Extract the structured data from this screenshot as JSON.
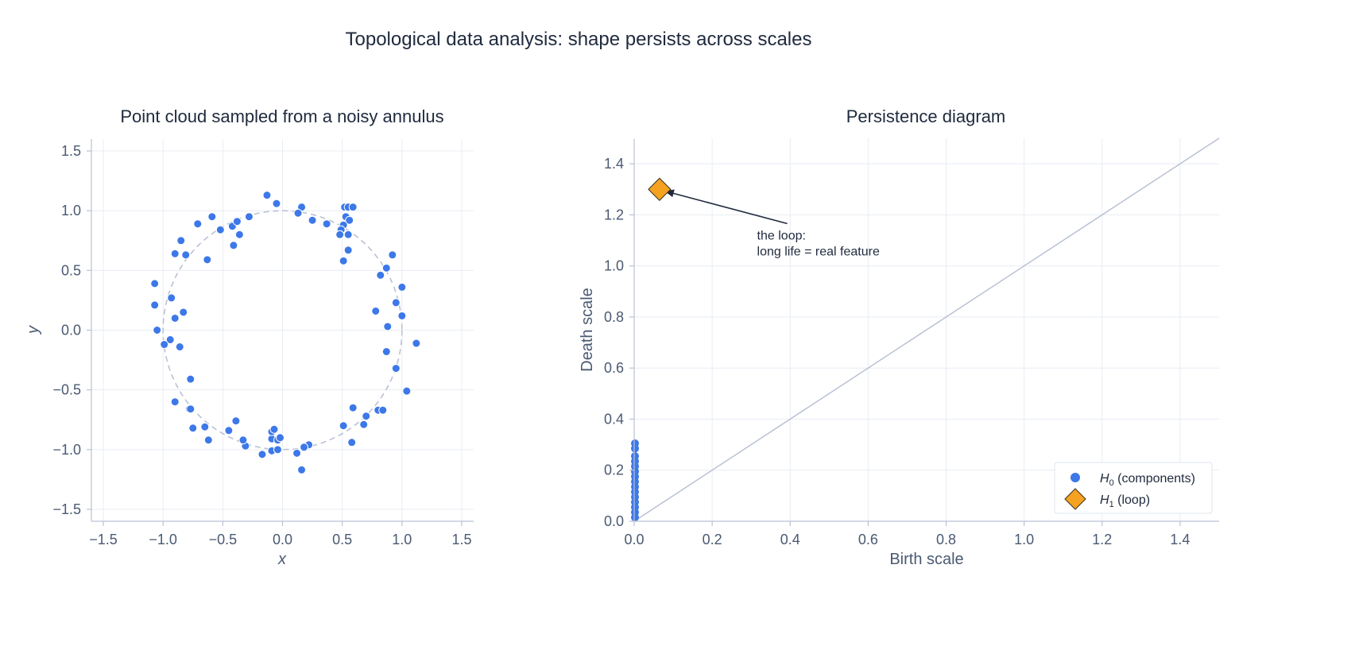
{
  "figure_title": "Topological data analysis: shape persists across scales",
  "chart_data": [
    {
      "type": "scatter",
      "title": "Point cloud sampled from a noisy annulus",
      "xlabel": "x",
      "ylabel": "y",
      "xlim": [
        -1.6,
        1.6
      ],
      "ylim": [
        -1.6,
        1.6
      ],
      "xticks": [
        "−1.5",
        "−1.0",
        "−0.5",
        "0.0",
        "0.5",
        "1.0",
        "1.5"
      ],
      "yticks": [
        "−1.5",
        "−1.0",
        "−0.5",
        "0.0",
        "0.5",
        "1.0",
        "1.5"
      ],
      "grid": true,
      "reference_circle_radius": 1.0,
      "colors": {
        "points": "#3d78e8",
        "circle": "#b9c2d3"
      },
      "points": [
        [
          -0.13,
          1.13
        ],
        [
          -0.05,
          1.06
        ],
        [
          0.16,
          1.03
        ],
        [
          0.13,
          0.98
        ],
        [
          0.25,
          0.92
        ],
        [
          0.37,
          0.89
        ],
        [
          0.52,
          1.03
        ],
        [
          0.55,
          1.03
        ],
        [
          0.59,
          1.03
        ],
        [
          0.53,
          0.95
        ],
        [
          0.56,
          0.92
        ],
        [
          0.51,
          0.88
        ],
        [
          0.49,
          0.84
        ],
        [
          0.48,
          0.8
        ],
        [
          0.55,
          0.8
        ],
        [
          0.55,
          0.67
        ],
        [
          0.51,
          0.58
        ],
        [
          0.92,
          0.63
        ],
        [
          0.87,
          0.52
        ],
        [
          0.82,
          0.46
        ],
        [
          1.0,
          0.36
        ],
        [
          0.95,
          0.23
        ],
        [
          0.78,
          0.16
        ],
        [
          1.0,
          0.12
        ],
        [
          0.88,
          0.03
        ],
        [
          1.12,
          -0.11
        ],
        [
          0.87,
          -0.18
        ],
        [
          0.95,
          -0.32
        ],
        [
          1.04,
          -0.51
        ],
        [
          0.8,
          -0.67
        ],
        [
          0.84,
          -0.67
        ],
        [
          0.7,
          -0.72
        ],
        [
          0.68,
          -0.79
        ],
        [
          0.59,
          -0.65
        ],
        [
          0.51,
          -0.8
        ],
        [
          0.58,
          -0.94
        ],
        [
          0.22,
          -0.96
        ],
        [
          0.18,
          -0.98
        ],
        [
          0.12,
          -1.03
        ],
        [
          0.16,
          -1.17
        ],
        [
          -0.17,
          -1.04
        ],
        [
          -0.09,
          -1.01
        ],
        [
          -0.04,
          -1.0
        ],
        [
          -0.09,
          -0.91
        ],
        [
          -0.04,
          -0.92
        ],
        [
          -0.02,
          -0.9
        ],
        [
          -0.09,
          -0.85
        ],
        [
          -0.07,
          -0.83
        ],
        [
          -0.31,
          -0.97
        ],
        [
          -0.33,
          -0.92
        ],
        [
          -0.45,
          -0.84
        ],
        [
          -0.39,
          -0.76
        ],
        [
          -0.62,
          -0.92
        ],
        [
          -0.65,
          -0.81
        ],
        [
          -0.75,
          -0.82
        ],
        [
          -0.78,
          -0.66
        ],
        [
          -0.77,
          -0.66
        ],
        [
          -0.9,
          -0.6
        ],
        [
          -0.77,
          -0.41
        ],
        [
          -0.86,
          -0.14
        ],
        [
          -0.94,
          -0.08
        ],
        [
          -0.99,
          -0.12
        ],
        [
          -1.05,
          0.0
        ],
        [
          -0.9,
          0.1
        ],
        [
          -0.83,
          0.15
        ],
        [
          -0.93,
          0.27
        ],
        [
          -1.07,
          0.21
        ],
        [
          -1.07,
          0.39
        ],
        [
          -0.81,
          0.63
        ],
        [
          -0.9,
          0.64
        ],
        [
          -0.85,
          0.75
        ],
        [
          -0.63,
          0.59
        ],
        [
          -0.71,
          0.89
        ],
        [
          -0.59,
          0.95
        ],
        [
          -0.52,
          0.84
        ],
        [
          -0.42,
          0.87
        ],
        [
          -0.38,
          0.91
        ],
        [
          -0.36,
          0.8
        ],
        [
          -0.41,
          0.71
        ],
        [
          -0.28,
          0.95
        ]
      ]
    },
    {
      "type": "scatter",
      "title": "Persistence diagram",
      "xlabel": "Birth scale",
      "ylabel": "Death scale",
      "xlim": [
        0,
        1.5
      ],
      "ylim": [
        0,
        1.5
      ],
      "xticks": [
        "0.0",
        "0.2",
        "0.4",
        "0.6",
        "0.8",
        "1.0",
        "1.2",
        "1.4"
      ],
      "yticks": [
        "0.0",
        "0.2",
        "0.4",
        "0.6",
        "0.8",
        "1.0",
        "1.2",
        "1.4"
      ],
      "grid": true,
      "diagonal": true,
      "legend_position": "bottom-right",
      "colors": {
        "h0": "#3d78e8",
        "h1": "#f4a21f",
        "h1_edge": "#3a3020",
        "diagonal": "#b9c2d3",
        "arrow": "#1f2a3d"
      },
      "series": [
        {
          "name_base": "H",
          "name_sub": "0",
          "name_suffix": " (components)",
          "marker": "circle",
          "points": [
            [
              0,
              0.305
            ],
            [
              0,
              0.285
            ],
            [
              0,
              0.255
            ],
            [
              0,
              0.235
            ],
            [
              0,
              0.215
            ],
            [
              0,
              0.195
            ],
            [
              0,
              0.175
            ],
            [
              0,
              0.155
            ],
            [
              0,
              0.135
            ],
            [
              0,
              0.115
            ],
            [
              0,
              0.095
            ],
            [
              0,
              0.075
            ],
            [
              0,
              0.055
            ],
            [
              0,
              0.035
            ],
            [
              0,
              0.015
            ]
          ]
        },
        {
          "name_base": "H",
          "name_sub": "1",
          "name_suffix": " (loop)",
          "marker": "diamond",
          "points": [
            [
              0.065,
              1.3
            ]
          ]
        }
      ],
      "annotation": {
        "lines": [
          "the loop:",
          "long life = real feature"
        ],
        "text_anchor": [
          0.315,
          1.06
        ],
        "arrow_target": [
          0.065,
          1.3
        ]
      }
    }
  ]
}
